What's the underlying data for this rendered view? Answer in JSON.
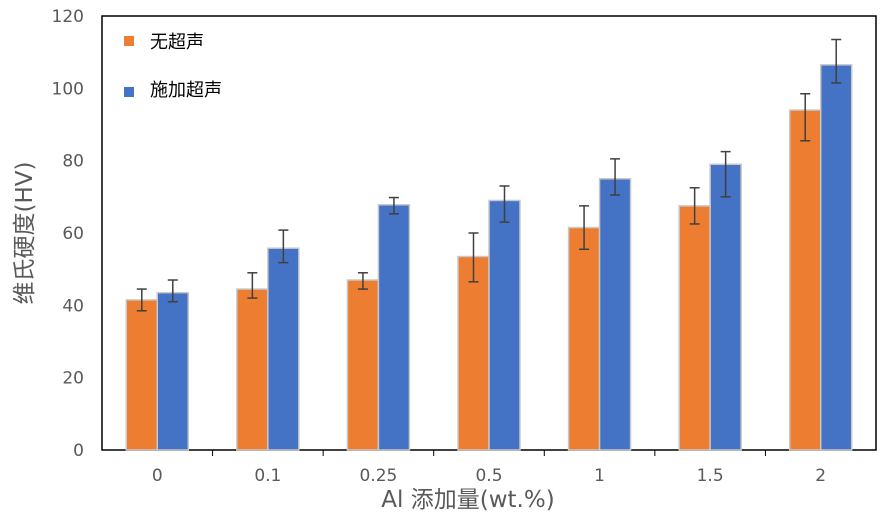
{
  "chart_data": {
    "type": "bar",
    "categories": [
      "0",
      "0.1",
      "0.25",
      "0.5",
      "1",
      "1.5",
      "2"
    ],
    "series": [
      {
        "name": "无超声",
        "color": "#ED7D31",
        "values": [
          41.5,
          44.5,
          47.0,
          53.5,
          61.5,
          67.5,
          94.0
        ],
        "err_low": [
          3.0,
          2.5,
          2.5,
          7.0,
          6.0,
          5.0,
          8.5
        ],
        "err_high": [
          3.0,
          4.5,
          2.0,
          6.5,
          6.0,
          5.0,
          4.5
        ]
      },
      {
        "name": "施加超声",
        "color": "#4472C4",
        "values": [
          43.5,
          55.8,
          67.8,
          69.0,
          75.0,
          79.0,
          106.5
        ],
        "err_low": [
          2.5,
          4.0,
          2.5,
          6.0,
          4.5,
          9.0,
          5.0
        ],
        "err_high": [
          3.5,
          5.0,
          2.0,
          4.0,
          5.5,
          3.5,
          7.0
        ]
      }
    ],
    "xlabel": "Al 添加量(wt.%)",
    "ylabel": "维氏硬度(HV)",
    "ylim": [
      0,
      120
    ],
    "yticks": [
      "0",
      "20",
      "40",
      "60",
      "80",
      "100",
      "120"
    ],
    "grid": false,
    "legend_position": "top-left"
  }
}
